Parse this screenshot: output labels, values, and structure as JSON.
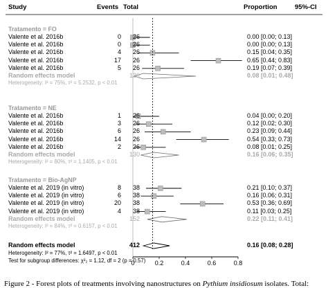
{
  "header": {
    "study": "Study",
    "events": "Events",
    "total": "Total",
    "proportion": "Proportion",
    "ci": "95%-CI"
  },
  "chart_data": {
    "type": "forest",
    "xlim": [
      0,
      0.8
    ],
    "x_ticks": [
      "0",
      "0.2",
      "0.4",
      "0.6",
      "0.8"
    ],
    "reference_line": 0.15,
    "groups": [
      {
        "label": "Tratamento = FO",
        "studies": [
          {
            "study": "Valente et al. 2016b",
            "events": "0",
            "total": "26",
            "proportion": 0.0,
            "lower": 0.0,
            "upper": 0.13,
            "ci_text": "0.00  [0.00; 0.13]"
          },
          {
            "study": "Valente et al. 2016b",
            "events": "0",
            "total": "26",
            "proportion": 0.0,
            "lower": 0.0,
            "upper": 0.13,
            "ci_text": "0.00  [0.00; 0.13]"
          },
          {
            "study": "Valente et al. 2016b",
            "events": "4",
            "total": "26",
            "proportion": 0.15,
            "lower": 0.04,
            "upper": 0.35,
            "ci_text": "0.15  [0.04; 0.35]"
          },
          {
            "study": "Valente et al. 2016b",
            "events": "17",
            "total": "26",
            "proportion": 0.65,
            "lower": 0.44,
            "upper": 0.83,
            "ci_text": "0.65  [0.44; 0.83]"
          },
          {
            "study": "Valente et al. 2016b",
            "events": "5",
            "total": "26",
            "proportion": 0.19,
            "lower": 0.07,
            "upper": 0.39,
            "ci_text": "0.19  [0.07; 0.39]"
          }
        ],
        "summary": {
          "label": "Random effects model",
          "total": "130",
          "proportion": 0.08,
          "lower": 0.01,
          "upper": 0.48,
          "ci_text": "0.08  [0.01; 0.48]"
        },
        "heterogeneity": "Heterogeneity: I² = 75%, τ² = 5.2532, p < 0.01"
      },
      {
        "label": "Tratamento = NE",
        "studies": [
          {
            "study": "Valente et al. 2016b",
            "events": "1",
            "total": "26",
            "proportion": 0.04,
            "lower": 0.0,
            "upper": 0.2,
            "ci_text": "0.04  [0.00; 0.20]"
          },
          {
            "study": "Valente et al. 2016b",
            "events": "3",
            "total": "26",
            "proportion": 0.12,
            "lower": 0.02,
            "upper": 0.3,
            "ci_text": "0.12  [0.02; 0.30]"
          },
          {
            "study": "Valente et al. 2016b",
            "events": "6",
            "total": "26",
            "proportion": 0.23,
            "lower": 0.09,
            "upper": 0.44,
            "ci_text": "0.23  [0.09; 0.44]"
          },
          {
            "study": "Valente et al. 2016b",
            "events": "14",
            "total": "26",
            "proportion": 0.54,
            "lower": 0.33,
            "upper": 0.73,
            "ci_text": "0.54  [0.33; 0.73]"
          },
          {
            "study": "Valente et al. 2016b",
            "events": "2",
            "total": "26",
            "proportion": 0.08,
            "lower": 0.01,
            "upper": 0.25,
            "ci_text": "0.08  [0.01; 0.25]"
          }
        ],
        "summary": {
          "label": "Random effects model",
          "total": "130",
          "proportion": 0.16,
          "lower": 0.06,
          "upper": 0.35,
          "ci_text": "0.16  [0.06; 0.35]"
        },
        "heterogeneity": "Heterogeneity: I² = 80%, τ² = 1.1405, p < 0.01"
      },
      {
        "label": "Tratamento = Bio-AgNP",
        "studies": [
          {
            "study": "Valente et al. 2019  (in vitro)",
            "events": "8",
            "total": "38",
            "proportion": 0.21,
            "lower": 0.1,
            "upper": 0.37,
            "ci_text": "0.21  [0.10; 0.37]"
          },
          {
            "study": "Valente et al. 2019  (in vitro)",
            "events": "6",
            "total": "38",
            "proportion": 0.16,
            "lower": 0.06,
            "upper": 0.31,
            "ci_text": "0.16  [0.06; 0.31]"
          },
          {
            "study": "Valente et al. 2019  (in vitro)",
            "events": "20",
            "total": "38",
            "proportion": 0.53,
            "lower": 0.36,
            "upper": 0.69,
            "ci_text": "0.53  [0.36; 0.69]"
          },
          {
            "study": "Valente et al. 2019  (in vitro)",
            "events": "4",
            "total": "38",
            "proportion": 0.11,
            "lower": 0.03,
            "upper": 0.25,
            "ci_text": "0.11  [0.03; 0.25]"
          }
        ],
        "summary": {
          "label": "Random effects model",
          "total": "152",
          "proportion": 0.22,
          "lower": 0.11,
          "upper": 0.41,
          "ci_text": "0.22  [0.11; 0.41]"
        },
        "heterogeneity": "Heterogeneity: I² = 84%, τ² = 0.6157, p < 0.01"
      }
    ],
    "overall": {
      "label": "Random effects model",
      "total": "412",
      "proportion": 0.16,
      "lower": 0.08,
      "upper": 0.28,
      "ci_text": "0.16  [0.08; 0.28]",
      "heterogeneity": "Heterogeneity: I² = 77%, τ² = 1.6497, p < 0.01",
      "subgroup_test": "Test for subgroup differences: χ²₂ = 1.12, df = 2 (p = 0.57)"
    }
  },
  "caption": {
    "prefix": "Figure 2 - Forest plots of treatments involving nanostructures on ",
    "species": "Pythium insidiosum",
    "suffix": " isolates. Total:"
  }
}
